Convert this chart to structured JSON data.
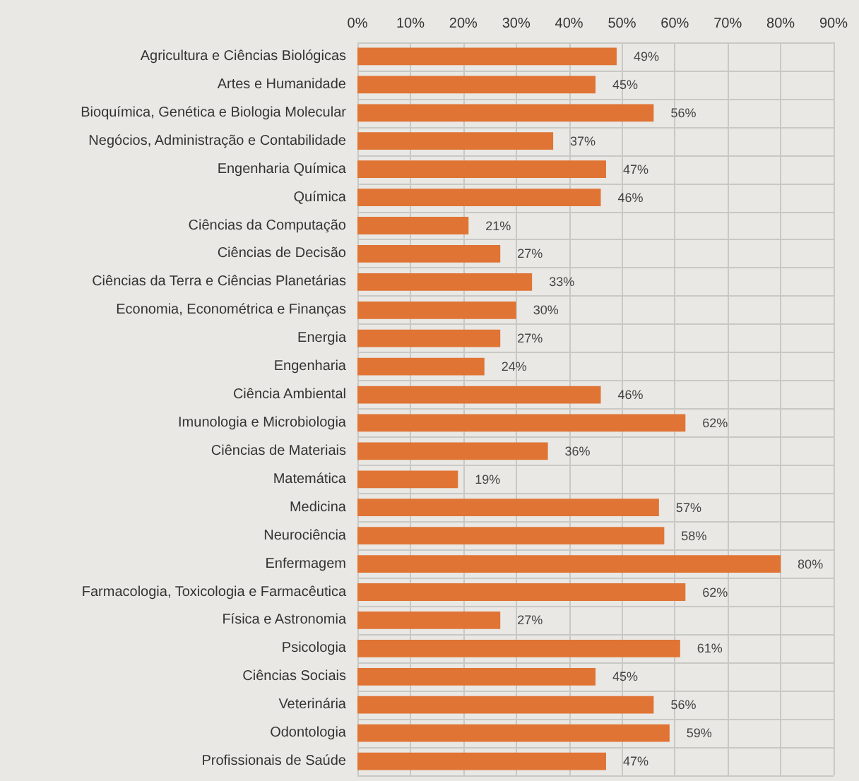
{
  "chart_data": {
    "type": "bar",
    "orientation": "horizontal",
    "categories": [
      "Agricultura e Ciências Biológicas",
      "Artes e Humanidade",
      "Bioquímica, Genética e Biologia Molecular",
      "Negócios, Administração e Contabilidade",
      "Engenharia Química",
      "Química",
      "Ciências da Computação",
      "Ciências de Decisão",
      "Ciências da Terra e Ciências Planetárias",
      "Economia, Econométrica e Finanças",
      "Energia",
      "Engenharia",
      "Ciência Ambiental",
      "Imunologia e Microbiologia",
      "Ciências de Materiais",
      "Matemática",
      "Medicina",
      "Neurociência",
      "Enfermagem",
      "Farmacologia, Toxicologia e Farmacêutica",
      "Física e Astronomia",
      "Psicologia",
      "Ciências Sociais",
      "Veterinária",
      "Odontologia",
      "Profissionais de Saúde"
    ],
    "values": [
      49,
      45,
      56,
      37,
      47,
      46,
      21,
      27,
      33,
      30,
      27,
      24,
      46,
      62,
      36,
      19,
      57,
      58,
      80,
      62,
      27,
      61,
      45,
      56,
      59,
      47
    ],
    "value_labels": [
      "49%",
      "45%",
      "56%",
      "37%",
      "47%",
      "46%",
      "21%",
      "27%",
      "33%",
      "30%",
      "27%",
      "24%",
      "46%",
      "62%",
      "36%",
      "19%",
      "57%",
      "58%",
      "80%",
      "62%",
      "27%",
      "61%",
      "45%",
      "56%",
      "59%",
      "47%"
    ],
    "color": "#e07434",
    "xlim": [
      0,
      90
    ],
    "xticks": [
      {
        "value": 0,
        "label": "0%"
      },
      {
        "value": 10,
        "label": "10%"
      },
      {
        "value": 20,
        "label": "20%"
      },
      {
        "value": 30,
        "label": "30%"
      },
      {
        "value": 40,
        "label": "40%"
      },
      {
        "value": 50,
        "label": "50%"
      },
      {
        "value": 60,
        "label": "60%"
      },
      {
        "value": 70,
        "label": "70%"
      },
      {
        "value": 80,
        "label": "80%"
      },
      {
        "value": 90,
        "label": "90%"
      }
    ],
    "grid": true
  }
}
